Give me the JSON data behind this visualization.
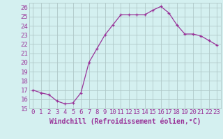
{
  "x": [
    0,
    1,
    2,
    3,
    4,
    5,
    6,
    7,
    8,
    9,
    10,
    11,
    12,
    13,
    14,
    15,
    16,
    17,
    18,
    19,
    20,
    21,
    22,
    23
  ],
  "y": [
    17.0,
    16.7,
    16.5,
    15.8,
    15.5,
    15.6,
    16.7,
    20.0,
    21.5,
    23.0,
    24.1,
    25.2,
    25.2,
    25.2,
    25.2,
    25.7,
    26.1,
    25.4,
    24.1,
    23.1,
    23.1,
    22.9,
    22.4,
    21.9
  ],
  "line_color": "#993399",
  "marker": "+",
  "bg_color": "#d4f0f0",
  "grid_color": "#b0c8c8",
  "tick_color": "#993399",
  "xlabel": "Windchill (Refroidissement éolien,°C)",
  "ylim": [
    15,
    26.5
  ],
  "xlim": [
    -0.5,
    23.5
  ],
  "yticks": [
    15,
    16,
    17,
    18,
    19,
    20,
    21,
    22,
    23,
    24,
    25,
    26
  ],
  "xticks": [
    0,
    1,
    2,
    3,
    4,
    5,
    6,
    7,
    8,
    9,
    10,
    11,
    12,
    13,
    14,
    15,
    16,
    17,
    18,
    19,
    20,
    21,
    22,
    23
  ],
  "font_size": 6.5,
  "xlabel_fontsize": 7.0
}
